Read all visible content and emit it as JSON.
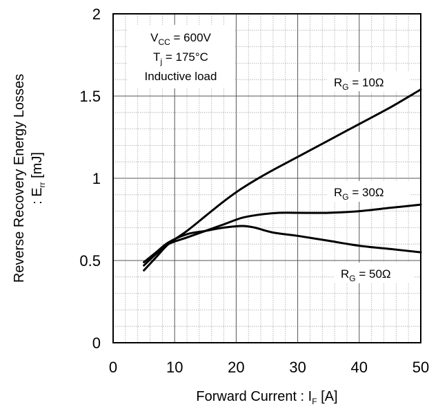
{
  "chart_data": {
    "type": "line",
    "xlabel": {
      "main": "Forward Current : I",
      "sub": "F",
      "unit": " [A]"
    },
    "ylabel": {
      "line1": "Reverse Recovery Energy Losses",
      "prefix": ": E",
      "sub": "rr",
      "unit": " [mJ]"
    },
    "xlim": [
      0,
      50
    ],
    "ylim": [
      0,
      2
    ],
    "x_ticks": [
      "0",
      "10",
      "20",
      "30",
      "40",
      "50"
    ],
    "y_ticks": [
      "0",
      "0.5",
      "1",
      "1.5",
      "2"
    ],
    "grid": true,
    "conditions": {
      "vcc": {
        "sym": "V",
        "sub": "CC",
        "val": " = 600V"
      },
      "tj": {
        "sym": "T",
        "sub": "j",
        "val": " = 175°C"
      },
      "load": "Inductive load"
    },
    "series": [
      {
        "name": "10Ω",
        "label": {
          "sym": "R",
          "sub": "G",
          "val": " = 10Ω"
        },
        "x": [
          5,
          7,
          9,
          12,
          15,
          18,
          21,
          25,
          30,
          35,
          40,
          45,
          50
        ],
        "y": [
          0.44,
          0.52,
          0.6,
          0.68,
          0.77,
          0.86,
          0.94,
          1.03,
          1.13,
          1.23,
          1.33,
          1.43,
          1.54
        ]
      },
      {
        "name": "30Ω",
        "label": {
          "sym": "R",
          "sub": "G",
          "val": " = 30Ω"
        },
        "x": [
          5,
          7,
          9,
          12,
          15,
          18,
          21,
          24,
          27,
          30,
          35,
          40,
          45,
          50
        ],
        "y": [
          0.47,
          0.54,
          0.6,
          0.64,
          0.68,
          0.72,
          0.76,
          0.78,
          0.79,
          0.79,
          0.79,
          0.8,
          0.82,
          0.84
        ]
      },
      {
        "name": "50Ω",
        "label": {
          "sym": "R",
          "sub": "G",
          "val": " = 50Ω"
        },
        "x": [
          5,
          7,
          9,
          12,
          15,
          18,
          21,
          23,
          26,
          30,
          35,
          40,
          45,
          50
        ],
        "y": [
          0.49,
          0.55,
          0.61,
          0.66,
          0.68,
          0.7,
          0.71,
          0.7,
          0.67,
          0.65,
          0.62,
          0.59,
          0.57,
          0.55
        ]
      }
    ]
  }
}
